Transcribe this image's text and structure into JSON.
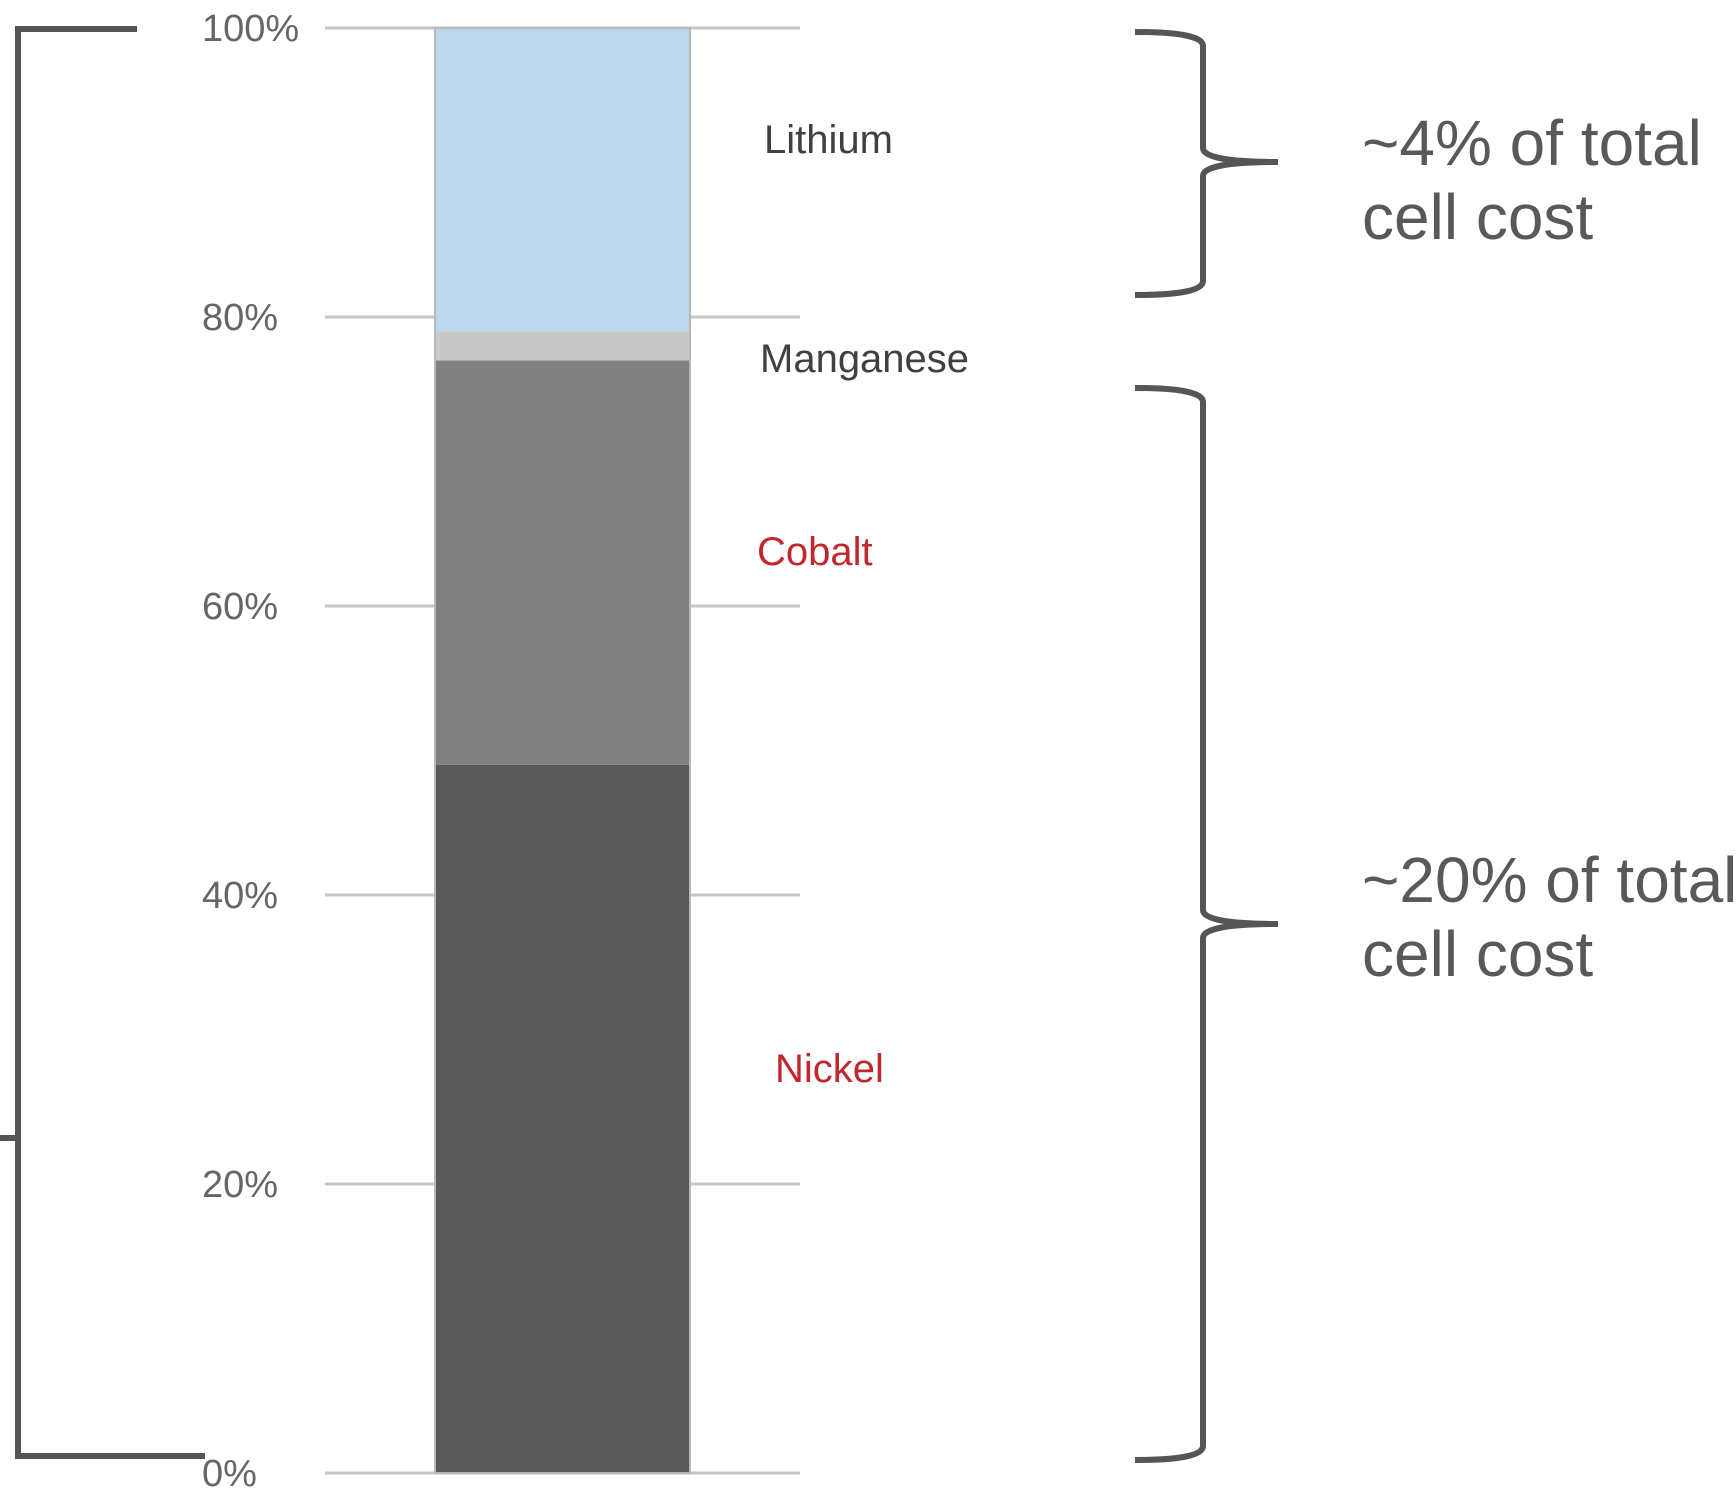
{
  "chart_data": {
    "type": "bar",
    "stacked": true,
    "categories": [
      ""
    ],
    "ylim": [
      0,
      100
    ],
    "y_ticks": [
      "0%",
      "20%",
      "40%",
      "60%",
      "80%",
      "100%"
    ],
    "grid": true,
    "series": [
      {
        "name": "Nickel",
        "values": [
          49
        ],
        "color": "#595959",
        "label_color": "#c0282d"
      },
      {
        "name": "Cobalt",
        "values": [
          28
        ],
        "color": "#808080",
        "label_color": "#c0282d"
      },
      {
        "name": "Manganese",
        "values": [
          2
        ],
        "color": "#c8c8c8",
        "label_color": "#404040"
      },
      {
        "name": "Lithium",
        "values": [
          21
        ],
        "color": "#bdd7ee",
        "label_color": "#404040"
      }
    ],
    "annotations": [
      {
        "lines": [
          "~4% of total",
          "cell cost"
        ],
        "from": 79,
        "to": 100
      },
      {
        "lines": [
          "~20% of total",
          "cell cost"
        ],
        "from": 0,
        "to": 77
      }
    ]
  }
}
